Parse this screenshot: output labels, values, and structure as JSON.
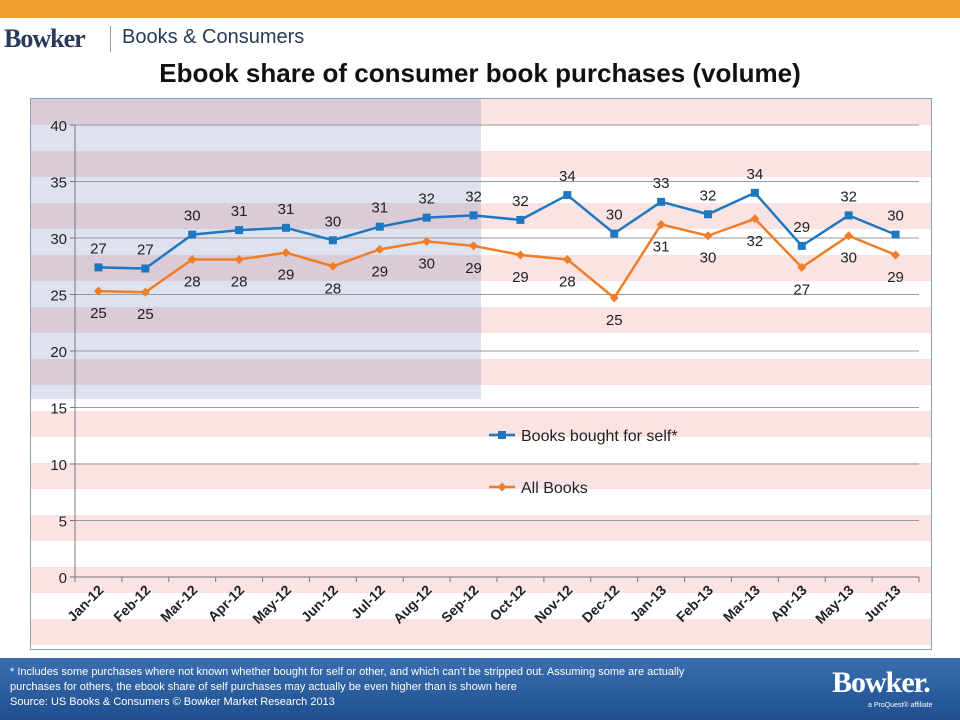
{
  "header": {
    "logo": "Bowker",
    "subtitle": "Books & Consumers"
  },
  "colors": {
    "accent_bar": "#f0a030",
    "series_self": "#1f77c0",
    "series_all": "#f07d28",
    "footer": "#2a5f9f"
  },
  "chart_data": {
    "type": "line",
    "title": "Ebook share of consumer book purchases (volume)",
    "xlabel": "",
    "ylabel": "",
    "ylim": [
      0,
      40
    ],
    "yticks": [
      "0",
      "5",
      "10",
      "15",
      "20",
      "25",
      "30",
      "35",
      "40"
    ],
    "grid": "horizontal",
    "legend_position": "center-right",
    "categories": [
      "Jan-12",
      "Feb-12",
      "Mar-12",
      "Apr-12",
      "May-12",
      "Jun-12",
      "Jul-12",
      "Aug-12",
      "Sep-12",
      "Oct-12",
      "Nov-12",
      "Dec-12",
      "Jan-13",
      "Feb-13",
      "Mar-13",
      "Apr-13",
      "May-13",
      "Jun-13"
    ],
    "series": [
      {
        "name": "Books bought for self*",
        "marker": "square",
        "values": [
          27.4,
          27.3,
          30.3,
          30.7,
          30.9,
          29.8,
          31.0,
          31.8,
          32.0,
          31.6,
          33.8,
          30.4,
          33.2,
          32.1,
          34.0,
          29.3,
          32.0,
          30.3
        ],
        "labels": [
          "27",
          "27",
          "30",
          "31",
          "31",
          "30",
          "31",
          "32",
          "32",
          "32",
          "34",
          "30",
          "33",
          "32",
          "34",
          "29",
          "32",
          "30"
        ]
      },
      {
        "name": "All Books",
        "marker": "diamond",
        "values": [
          25.3,
          25.2,
          28.1,
          28.1,
          28.7,
          27.5,
          29.0,
          29.7,
          29.3,
          28.5,
          28.1,
          24.7,
          31.2,
          30.2,
          31.7,
          27.4,
          30.2,
          28.5
        ],
        "labels": [
          "25",
          "25",
          "28",
          "28",
          "29",
          "28",
          "29",
          "30",
          "29",
          "29",
          "28",
          "25",
          "31",
          "30",
          "32",
          "27",
          "30",
          "29"
        ]
      }
    ]
  },
  "footer": {
    "note_line1": "* Includes some purchases where not known whether bought for self or other, and which can’t be stripped out.  Assuming some are actually",
    "note_line2": "purchases for others, the ebook share of self purchases may actually be even higher than is shown here",
    "source": "Source: US Books & Consumers © Bowker Market Research 2013",
    "logo": "Bowker.",
    "tagline": "a ProQuest® affiliate"
  }
}
